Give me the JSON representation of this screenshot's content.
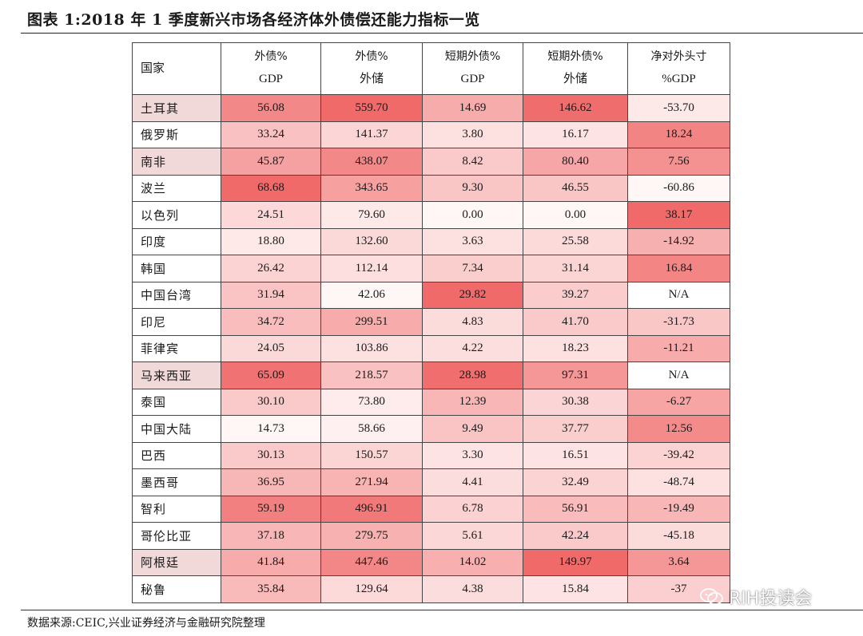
{
  "title": "图表 1:2018 年 1 季度新兴市场各经济体外债偿还能力指标一览",
  "table": {
    "headers": [
      {
        "line1": "国家",
        "line2": ""
      },
      {
        "line1": "外债%",
        "line2": "GDP"
      },
      {
        "line1": "外债%",
        "line2": "外储"
      },
      {
        "line1": "短期外债%",
        "line2": "GDP"
      },
      {
        "line1": "短期外债%",
        "line2": "外储"
      },
      {
        "line1": "净对外头寸",
        "line2": "%GDP"
      }
    ],
    "rows": [
      {
        "country": "土耳其",
        "values": [
          "56.08",
          "559.70",
          "14.69",
          "146.62",
          "-53.70"
        ]
      },
      {
        "country": "俄罗斯",
        "values": [
          "33.24",
          "141.37",
          "3.80",
          "16.17",
          "18.24"
        ]
      },
      {
        "country": "南非",
        "values": [
          "45.87",
          "438.07",
          "8.42",
          "80.40",
          "7.56"
        ]
      },
      {
        "country": "波兰",
        "values": [
          "68.68",
          "343.65",
          "9.30",
          "46.55",
          "-60.86"
        ]
      },
      {
        "country": "以色列",
        "values": [
          "24.51",
          "79.60",
          "0.00",
          "0.00",
          "38.17"
        ]
      },
      {
        "country": "印度",
        "values": [
          "18.80",
          "132.60",
          "3.63",
          "25.58",
          "-14.92"
        ]
      },
      {
        "country": "韩国",
        "values": [
          "26.42",
          "112.14",
          "7.34",
          "31.14",
          "16.84"
        ]
      },
      {
        "country": "中国台湾",
        "values": [
          "31.94",
          "42.06",
          "29.82",
          "39.27",
          "N/A"
        ]
      },
      {
        "country": "印尼",
        "values": [
          "34.72",
          "299.51",
          "4.83",
          "41.70",
          "-31.73"
        ]
      },
      {
        "country": "菲律宾",
        "values": [
          "24.05",
          "103.86",
          "4.22",
          "18.23",
          "-11.21"
        ]
      },
      {
        "country": "马来西亚",
        "values": [
          "65.09",
          "218.57",
          "28.98",
          "97.31",
          "N/A"
        ]
      },
      {
        "country": "泰国",
        "values": [
          "30.10",
          "73.80",
          "12.39",
          "30.38",
          "-6.27"
        ]
      },
      {
        "country": "中国大陆",
        "values": [
          "14.73",
          "58.66",
          "9.49",
          "37.77",
          "12.56"
        ]
      },
      {
        "country": "巴西",
        "values": [
          "30.13",
          "150.57",
          "3.30",
          "16.51",
          "-39.42"
        ]
      },
      {
        "country": "墨西哥",
        "values": [
          "36.95",
          "271.94",
          "4.41",
          "32.49",
          "-48.74"
        ]
      },
      {
        "country": "智利",
        "values": [
          "59.19",
          "496.91",
          "6.78",
          "56.91",
          "-19.49"
        ]
      },
      {
        "country": "哥伦比亚",
        "values": [
          "37.18",
          "279.75",
          "5.61",
          "42.24",
          "-45.18"
        ]
      },
      {
        "country": "阿根廷",
        "values": [
          "41.84",
          "447.46",
          "14.02",
          "149.97",
          "3.64"
        ]
      },
      {
        "country": "秘鲁",
        "values": [
          "35.84",
          "129.64",
          "4.38",
          "15.84",
          "-37"
        ]
      }
    ],
    "colors": {
      "country_highlight": "#f2d9d9",
      "heat_low": "#fff6f6",
      "heat_high": "#f06a6a",
      "na": "#ffffff",
      "border": "#444444"
    }
  },
  "footer": "数据来源:CEIC,兴业证券经济与金融研究院整理",
  "watermark": {
    "icon": "wechat-icon",
    "text": "RIH投读会"
  }
}
